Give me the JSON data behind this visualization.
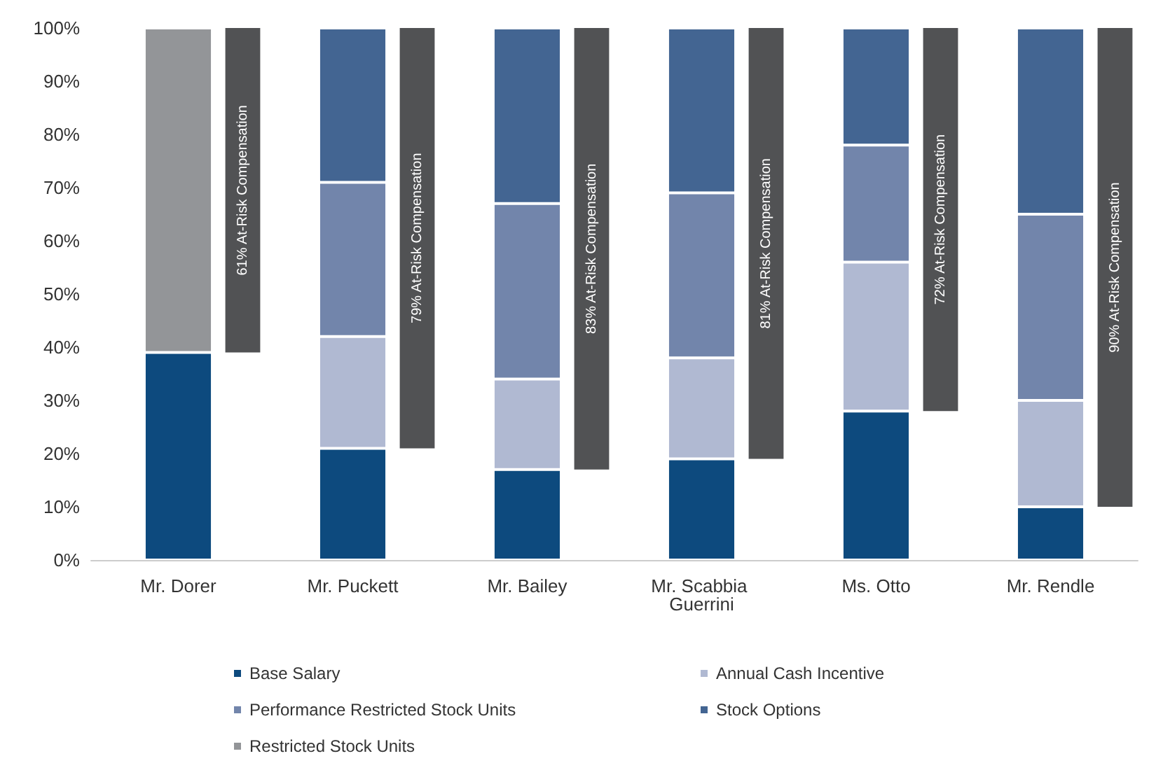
{
  "chart_data": [
    {
      "type": "bar",
      "stacked": true,
      "categories": [
        "Mr. Dorer",
        "Mr. Puckett",
        "Mr. Bailey",
        "Mr. Scabbia Guerrini",
        "Ms. Otto",
        "Mr. Rendle"
      ],
      "series": [
        {
          "name": "Base Salary",
          "color": "#0d4a7e",
          "values": [
            39,
            21,
            17,
            19,
            28,
            10
          ]
        },
        {
          "name": "Annual Cash Incentive",
          "color": "#b0b9d2",
          "values": [
            null,
            21,
            17,
            19,
            28,
            20
          ]
        },
        {
          "name": "Performance Restricted Stock Units",
          "color": "#7285ab",
          "values": [
            null,
            29,
            33,
            31,
            22,
            35
          ]
        },
        {
          "name": "Stock Options",
          "color": "#436592",
          "values": [
            null,
            29,
            33,
            31,
            22,
            35
          ]
        },
        {
          "name": "Restricted Stock Units",
          "color": "#939598",
          "values": [
            61,
            null,
            null,
            null,
            null,
            null
          ]
        }
      ],
      "ylim": [
        0,
        100
      ],
      "yticks": [
        {
          "value": 0,
          "label": "0%"
        },
        {
          "value": 10,
          "label": "10%"
        },
        {
          "value": 20,
          "label": "20%"
        },
        {
          "value": 30,
          "label": "30%"
        },
        {
          "value": 40,
          "label": "40%"
        },
        {
          "value": 50,
          "label": "50%"
        },
        {
          "value": 60,
          "label": "60%"
        },
        {
          "value": 70,
          "label": "70%"
        },
        {
          "value": 80,
          "label": "80%"
        },
        {
          "value": 90,
          "label": "90%"
        },
        {
          "value": 100,
          "label": "100%"
        }
      ],
      "grid": false,
      "legend": "bottom"
    },
    {
      "type": "bar",
      "categories": [
        "Mr. Dorer",
        "Mr. Puckett",
        "Mr. Bailey",
        "Mr. Scabbia Guerrini",
        "Ms. Otto",
        "Mr. Rendle"
      ],
      "series": [
        {
          "color": "#515254",
          "values": [
            61,
            79,
            83,
            81,
            72,
            90
          ],
          "base": [
            39,
            21,
            17,
            19,
            28,
            10
          ],
          "value_labels": [
            "61% At-Risk Compensation",
            "79% At-Risk Compensation",
            "83% At-Risk Compensation",
            "81% At-Risk Compensation",
            "72% At-Risk Compensation",
            "90% At-Risk Compensation"
          ]
        }
      ],
      "ylim": [
        0,
        100
      ],
      "yticks": [
        {
          "value": 0,
          "label": "0%"
        },
        {
          "value": 10,
          "label": "10%"
        },
        {
          "value": 20,
          "label": "20%"
        },
        {
          "value": 30,
          "label": "30%"
        },
        {
          "value": 40,
          "label": "40%"
        },
        {
          "value": 50,
          "label": "50%"
        },
        {
          "value": 60,
          "label": "60%"
        },
        {
          "value": 70,
          "label": "70%"
        },
        {
          "value": 80,
          "label": "80%"
        },
        {
          "value": 90,
          "label": "90%"
        },
        {
          "value": 100,
          "label": "100%"
        }
      ],
      "tick_labels": false,
      "grid": false
    }
  ]
}
